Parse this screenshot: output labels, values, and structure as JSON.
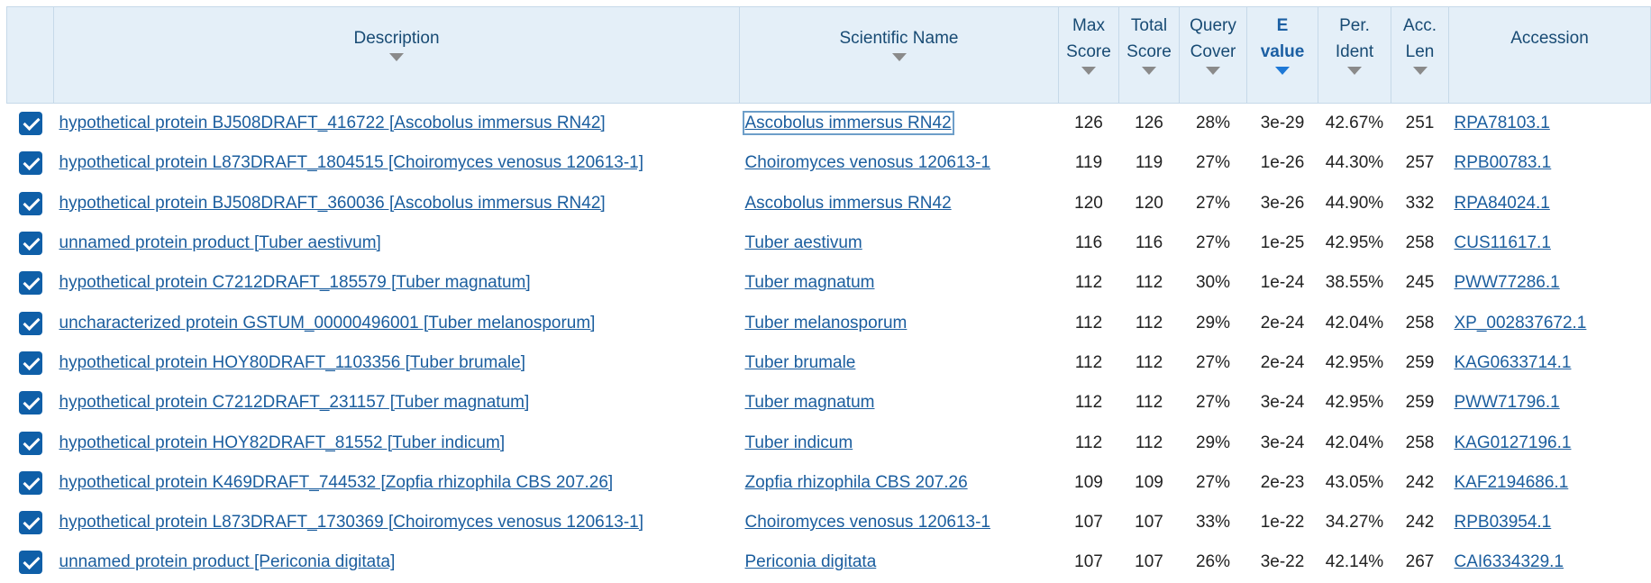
{
  "columns": {
    "description": "Description",
    "scientific_name": "Scientific Name",
    "max_score": [
      "Max",
      "Score"
    ],
    "total_score": [
      "Total",
      "Score"
    ],
    "query_cover": [
      "Query",
      "Cover"
    ],
    "e_value": [
      "E",
      "value"
    ],
    "per_ident": [
      "Per.",
      "Ident"
    ],
    "acc_len": [
      "Acc.",
      "Len"
    ],
    "accession": "Accession"
  },
  "sort": {
    "column": "e_value",
    "direction": "ascending",
    "icon": "sort-down-arrow-icon"
  },
  "colors": {
    "header_bg": "#e4eff8",
    "header_text": "#184b74",
    "link": "#1a5d9e",
    "checkbox": "#0f5fa8",
    "sort_active": "#1d78d6"
  },
  "rows": [
    {
      "checked": true,
      "description": "hypothetical protein BJ508DRAFT_416722 [Ascobolus immersus RN42]",
      "scientific_name": "Ascobolus immersus RN42",
      "max_score": "126",
      "total_score": "126",
      "query_cover": "28%",
      "e_value": "3e-29",
      "per_ident": "42.67%",
      "acc_len": "251",
      "accession": "RPA78103.1"
    },
    {
      "checked": true,
      "description": "hypothetical protein L873DRAFT_1804515 [Choiromyces venosus 120613-1]",
      "scientific_name": "Choiromyces venosus 120613-1",
      "max_score": "119",
      "total_score": "119",
      "query_cover": "27%",
      "e_value": "1e-26",
      "per_ident": "44.30%",
      "acc_len": "257",
      "accession": "RPB00783.1"
    },
    {
      "checked": true,
      "description": "hypothetical protein BJ508DRAFT_360036 [Ascobolus immersus RN42]",
      "scientific_name": "Ascobolus immersus RN42",
      "max_score": "120",
      "total_score": "120",
      "query_cover": "27%",
      "e_value": "3e-26",
      "per_ident": "44.90%",
      "acc_len": "332",
      "accession": "RPA84024.1"
    },
    {
      "checked": true,
      "description": "unnamed protein product [Tuber aestivum]",
      "scientific_name": "Tuber aestivum",
      "max_score": "116",
      "total_score": "116",
      "query_cover": "27%",
      "e_value": "1e-25",
      "per_ident": "42.95%",
      "acc_len": "258",
      "accession": "CUS11617.1"
    },
    {
      "checked": true,
      "description": "hypothetical protein C7212DRAFT_185579 [Tuber magnatum]",
      "scientific_name": "Tuber magnatum",
      "max_score": "112",
      "total_score": "112",
      "query_cover": "30%",
      "e_value": "1e-24",
      "per_ident": "38.55%",
      "acc_len": "245",
      "accession": "PWW77286.1"
    },
    {
      "checked": true,
      "description": "uncharacterized protein GSTUM_00000496001 [Tuber melanosporum]",
      "scientific_name": "Tuber melanosporum",
      "max_score": "112",
      "total_score": "112",
      "query_cover": "29%",
      "e_value": "2e-24",
      "per_ident": "42.04%",
      "acc_len": "258",
      "accession": "XP_002837672.1"
    },
    {
      "checked": true,
      "description": "hypothetical protein HOY80DRAFT_1103356 [Tuber brumale]",
      "scientific_name": "Tuber brumale",
      "max_score": "112",
      "total_score": "112",
      "query_cover": "27%",
      "e_value": "2e-24",
      "per_ident": "42.95%",
      "acc_len": "259",
      "accession": "KAG0633714.1"
    },
    {
      "checked": true,
      "description": "hypothetical protein C7212DRAFT_231157 [Tuber magnatum]",
      "scientific_name": "Tuber magnatum",
      "max_score": "112",
      "total_score": "112",
      "query_cover": "27%",
      "e_value": "3e-24",
      "per_ident": "42.95%",
      "acc_len": "259",
      "accession": "PWW71796.1"
    },
    {
      "checked": true,
      "description": "hypothetical protein HOY82DRAFT_81552 [Tuber indicum]",
      "scientific_name": "Tuber indicum",
      "max_score": "112",
      "total_score": "112",
      "query_cover": "29%",
      "e_value": "3e-24",
      "per_ident": "42.04%",
      "acc_len": "258",
      "accession": "KAG0127196.1"
    },
    {
      "checked": true,
      "description": "hypothetical protein K469DRAFT_744532 [Zopfia rhizophila CBS 207.26]",
      "scientific_name": "Zopfia rhizophila CBS 207.26",
      "max_score": "109",
      "total_score": "109",
      "query_cover": "27%",
      "e_value": "2e-23",
      "per_ident": "43.05%",
      "acc_len": "242",
      "accession": "KAF2194686.1"
    },
    {
      "checked": true,
      "description": "hypothetical protein L873DRAFT_1730369 [Choiromyces venosus 120613-1]",
      "scientific_name": "Choiromyces venosus 120613-1",
      "max_score": "107",
      "total_score": "107",
      "query_cover": "33%",
      "e_value": "1e-22",
      "per_ident": "34.27%",
      "acc_len": "242",
      "accession": "RPB03954.1"
    },
    {
      "checked": true,
      "description": "unnamed protein product [Periconia digitata]",
      "scientific_name": "Periconia digitata",
      "max_score": "107",
      "total_score": "107",
      "query_cover": "26%",
      "e_value": "3e-22",
      "per_ident": "42.14%",
      "acc_len": "267",
      "accession": "CAI6334329.1"
    }
  ]
}
